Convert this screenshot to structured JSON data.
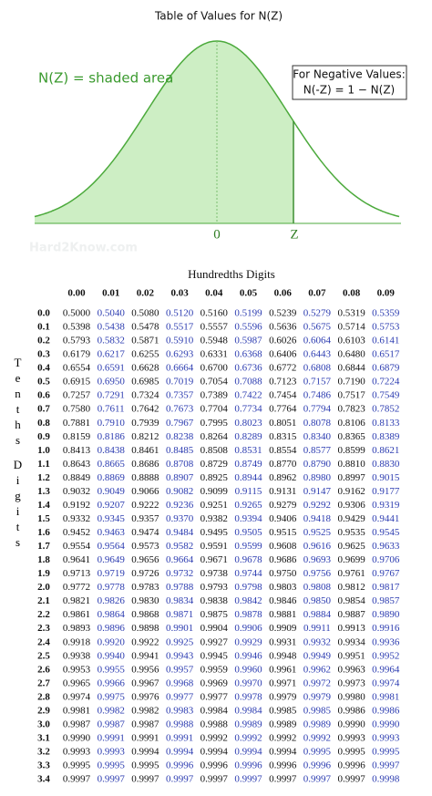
{
  "diagram": {
    "title": "Table of Values for N(Z)",
    "shaded_label": "N(Z) = shaded area",
    "note": {
      "heading": "For Negative Values:",
      "formula": "N(-Z) = 1 − N(Z)"
    },
    "zero_label": "0",
    "z_label": "Z",
    "watermark": "Hard2Know.com"
  },
  "table": {
    "title": "Hundredths Digits",
    "side_labels": [
      "Tenths",
      "Digits"
    ],
    "column_headers": [
      "0.00",
      "0.01",
      "0.02",
      "0.03",
      "0.04",
      "0.05",
      "0.06",
      "0.07",
      "0.08",
      "0.09"
    ],
    "row_headers": [
      "0.0",
      "0.1",
      "0.2",
      "0.3",
      "0.4",
      "0.5",
      "0.6",
      "0.7",
      "0.8",
      "0.9",
      "1.0",
      "1.1",
      "1.2",
      "1.3",
      "1.4",
      "1.5",
      "1.6",
      "1.7",
      "1.8",
      "1.9",
      "2.0",
      "2.1",
      "2.2",
      "2.3",
      "2.4",
      "2.5",
      "2.6",
      "2.7",
      "2.8",
      "2.9",
      "3.0",
      "3.1",
      "3.2",
      "3.3",
      "3.4"
    ],
    "rows": [
      [
        "0.5000",
        "0.5040",
        "0.5080",
        "0.5120",
        "0.5160",
        "0.5199",
        "0.5239",
        "0.5279",
        "0.5319",
        "0.5359"
      ],
      [
        "0.5398",
        "0.5438",
        "0.5478",
        "0.5517",
        "0.5557",
        "0.5596",
        "0.5636",
        "0.5675",
        "0.5714",
        "0.5753"
      ],
      [
        "0.5793",
        "0.5832",
        "0.5871",
        "0.5910",
        "0.5948",
        "0.5987",
        "0.6026",
        "0.6064",
        "0.6103",
        "0.6141"
      ],
      [
        "0.6179",
        "0.6217",
        "0.6255",
        "0.6293",
        "0.6331",
        "0.6368",
        "0.6406",
        "0.6443",
        "0.6480",
        "0.6517"
      ],
      [
        "0.6554",
        "0.6591",
        "0.6628",
        "0.6664",
        "0.6700",
        "0.6736",
        "0.6772",
        "0.6808",
        "0.6844",
        "0.6879"
      ],
      [
        "0.6915",
        "0.6950",
        "0.6985",
        "0.7019",
        "0.7054",
        "0.7088",
        "0.7123",
        "0.7157",
        "0.7190",
        "0.7224"
      ],
      [
        "0.7257",
        "0.7291",
        "0.7324",
        "0.7357",
        "0.7389",
        "0.7422",
        "0.7454",
        "0.7486",
        "0.7517",
        "0.7549"
      ],
      [
        "0.7580",
        "0.7611",
        "0.7642",
        "0.7673",
        "0.7704",
        "0.7734",
        "0.7764",
        "0.7794",
        "0.7823",
        "0.7852"
      ],
      [
        "0.7881",
        "0.7910",
        "0.7939",
        "0.7967",
        "0.7995",
        "0.8023",
        "0.8051",
        "0.8078",
        "0.8106",
        "0.8133"
      ],
      [
        "0.8159",
        "0.8186",
        "0.8212",
        "0.8238",
        "0.8264",
        "0.8289",
        "0.8315",
        "0.8340",
        "0.8365",
        "0.8389"
      ],
      [
        "0.8413",
        "0.8438",
        "0.8461",
        "0.8485",
        "0.8508",
        "0.8531",
        "0.8554",
        "0.8577",
        "0.8599",
        "0.8621"
      ],
      [
        "0.8643",
        "0.8665",
        "0.8686",
        "0.8708",
        "0.8729",
        "0.8749",
        "0.8770",
        "0.8790",
        "0.8810",
        "0.8830"
      ],
      [
        "0.8849",
        "0.8869",
        "0.8888",
        "0.8907",
        "0.8925",
        "0.8944",
        "0.8962",
        "0.8980",
        "0.8997",
        "0.9015"
      ],
      [
        "0.9032",
        "0.9049",
        "0.9066",
        "0.9082",
        "0.9099",
        "0.9115",
        "0.9131",
        "0.9147",
        "0.9162",
        "0.9177"
      ],
      [
        "0.9192",
        "0.9207",
        "0.9222",
        "0.9236",
        "0.9251",
        "0.9265",
        "0.9279",
        "0.9292",
        "0.9306",
        "0.9319"
      ],
      [
        "0.9332",
        "0.9345",
        "0.9357",
        "0.9370",
        "0.9382",
        "0.9394",
        "0.9406",
        "0.9418",
        "0.9429",
        "0.9441"
      ],
      [
        "0.9452",
        "0.9463",
        "0.9474",
        "0.9484",
        "0.9495",
        "0.9505",
        "0.9515",
        "0.9525",
        "0.9535",
        "0.9545"
      ],
      [
        "0.9554",
        "0.9564",
        "0.9573",
        "0.9582",
        "0.9591",
        "0.9599",
        "0.9608",
        "0.9616",
        "0.9625",
        "0.9633"
      ],
      [
        "0.9641",
        "0.9649",
        "0.9656",
        "0.9664",
        "0.9671",
        "0.9678",
        "0.9686",
        "0.9693",
        "0.9699",
        "0.9706"
      ],
      [
        "0.9713",
        "0.9719",
        "0.9726",
        "0.9732",
        "0.9738",
        "0.9744",
        "0.9750",
        "0.9756",
        "0.9761",
        "0.9767"
      ],
      [
        "0.9772",
        "0.9778",
        "0.9783",
        "0.9788",
        "0.9793",
        "0.9798",
        "0.9803",
        "0.9808",
        "0.9812",
        "0.9817"
      ],
      [
        "0.9821",
        "0.9826",
        "0.9830",
        "0.9834",
        "0.9838",
        "0.9842",
        "0.9846",
        "0.9850",
        "0.9854",
        "0.9857"
      ],
      [
        "0.9861",
        "0.9864",
        "0.9868",
        "0.9871",
        "0.9875",
        "0.9878",
        "0.9881",
        "0.9884",
        "0.9887",
        "0.9890"
      ],
      [
        "0.9893",
        "0.9896",
        "0.9898",
        "0.9901",
        "0.9904",
        "0.9906",
        "0.9909",
        "0.9911",
        "0.9913",
        "0.9916"
      ],
      [
        "0.9918",
        "0.9920",
        "0.9922",
        "0.9925",
        "0.9927",
        "0.9929",
        "0.9931",
        "0.9932",
        "0.9934",
        "0.9936"
      ],
      [
        "0.9938",
        "0.9940",
        "0.9941",
        "0.9943",
        "0.9945",
        "0.9946",
        "0.9948",
        "0.9949",
        "0.9951",
        "0.9952"
      ],
      [
        "0.9953",
        "0.9955",
        "0.9956",
        "0.9957",
        "0.9959",
        "0.9960",
        "0.9961",
        "0.9962",
        "0.9963",
        "0.9964"
      ],
      [
        "0.9965",
        "0.9966",
        "0.9967",
        "0.9968",
        "0.9969",
        "0.9970",
        "0.9971",
        "0.9972",
        "0.9973",
        "0.9974"
      ],
      [
        "0.9974",
        "0.9975",
        "0.9976",
        "0.9977",
        "0.9977",
        "0.9978",
        "0.9979",
        "0.9979",
        "0.9980",
        "0.9981"
      ],
      [
        "0.9981",
        "0.9982",
        "0.9982",
        "0.9983",
        "0.9984",
        "0.9984",
        "0.9985",
        "0.9985",
        "0.9986",
        "0.9986"
      ],
      [
        "0.9987",
        "0.9987",
        "0.9987",
        "0.9988",
        "0.9988",
        "0.9989",
        "0.9989",
        "0.9989",
        "0.9990",
        "0.9990"
      ],
      [
        "0.9990",
        "0.9991",
        "0.9991",
        "0.9991",
        "0.9992",
        "0.9992",
        "0.9992",
        "0.9992",
        "0.9993",
        "0.9993"
      ],
      [
        "0.9993",
        "0.9993",
        "0.9994",
        "0.9994",
        "0.9994",
        "0.9994",
        "0.9994",
        "0.9995",
        "0.9995",
        "0.9995"
      ],
      [
        "0.9995",
        "0.9995",
        "0.9995",
        "0.9996",
        "0.9996",
        "0.9996",
        "0.9996",
        "0.9996",
        "0.9996",
        "0.9997"
      ],
      [
        "0.9997",
        "0.9997",
        "0.9997",
        "0.9997",
        "0.9997",
        "0.9997",
        "0.9997",
        "0.9997",
        "0.9997",
        "0.9998"
      ]
    ]
  }
}
